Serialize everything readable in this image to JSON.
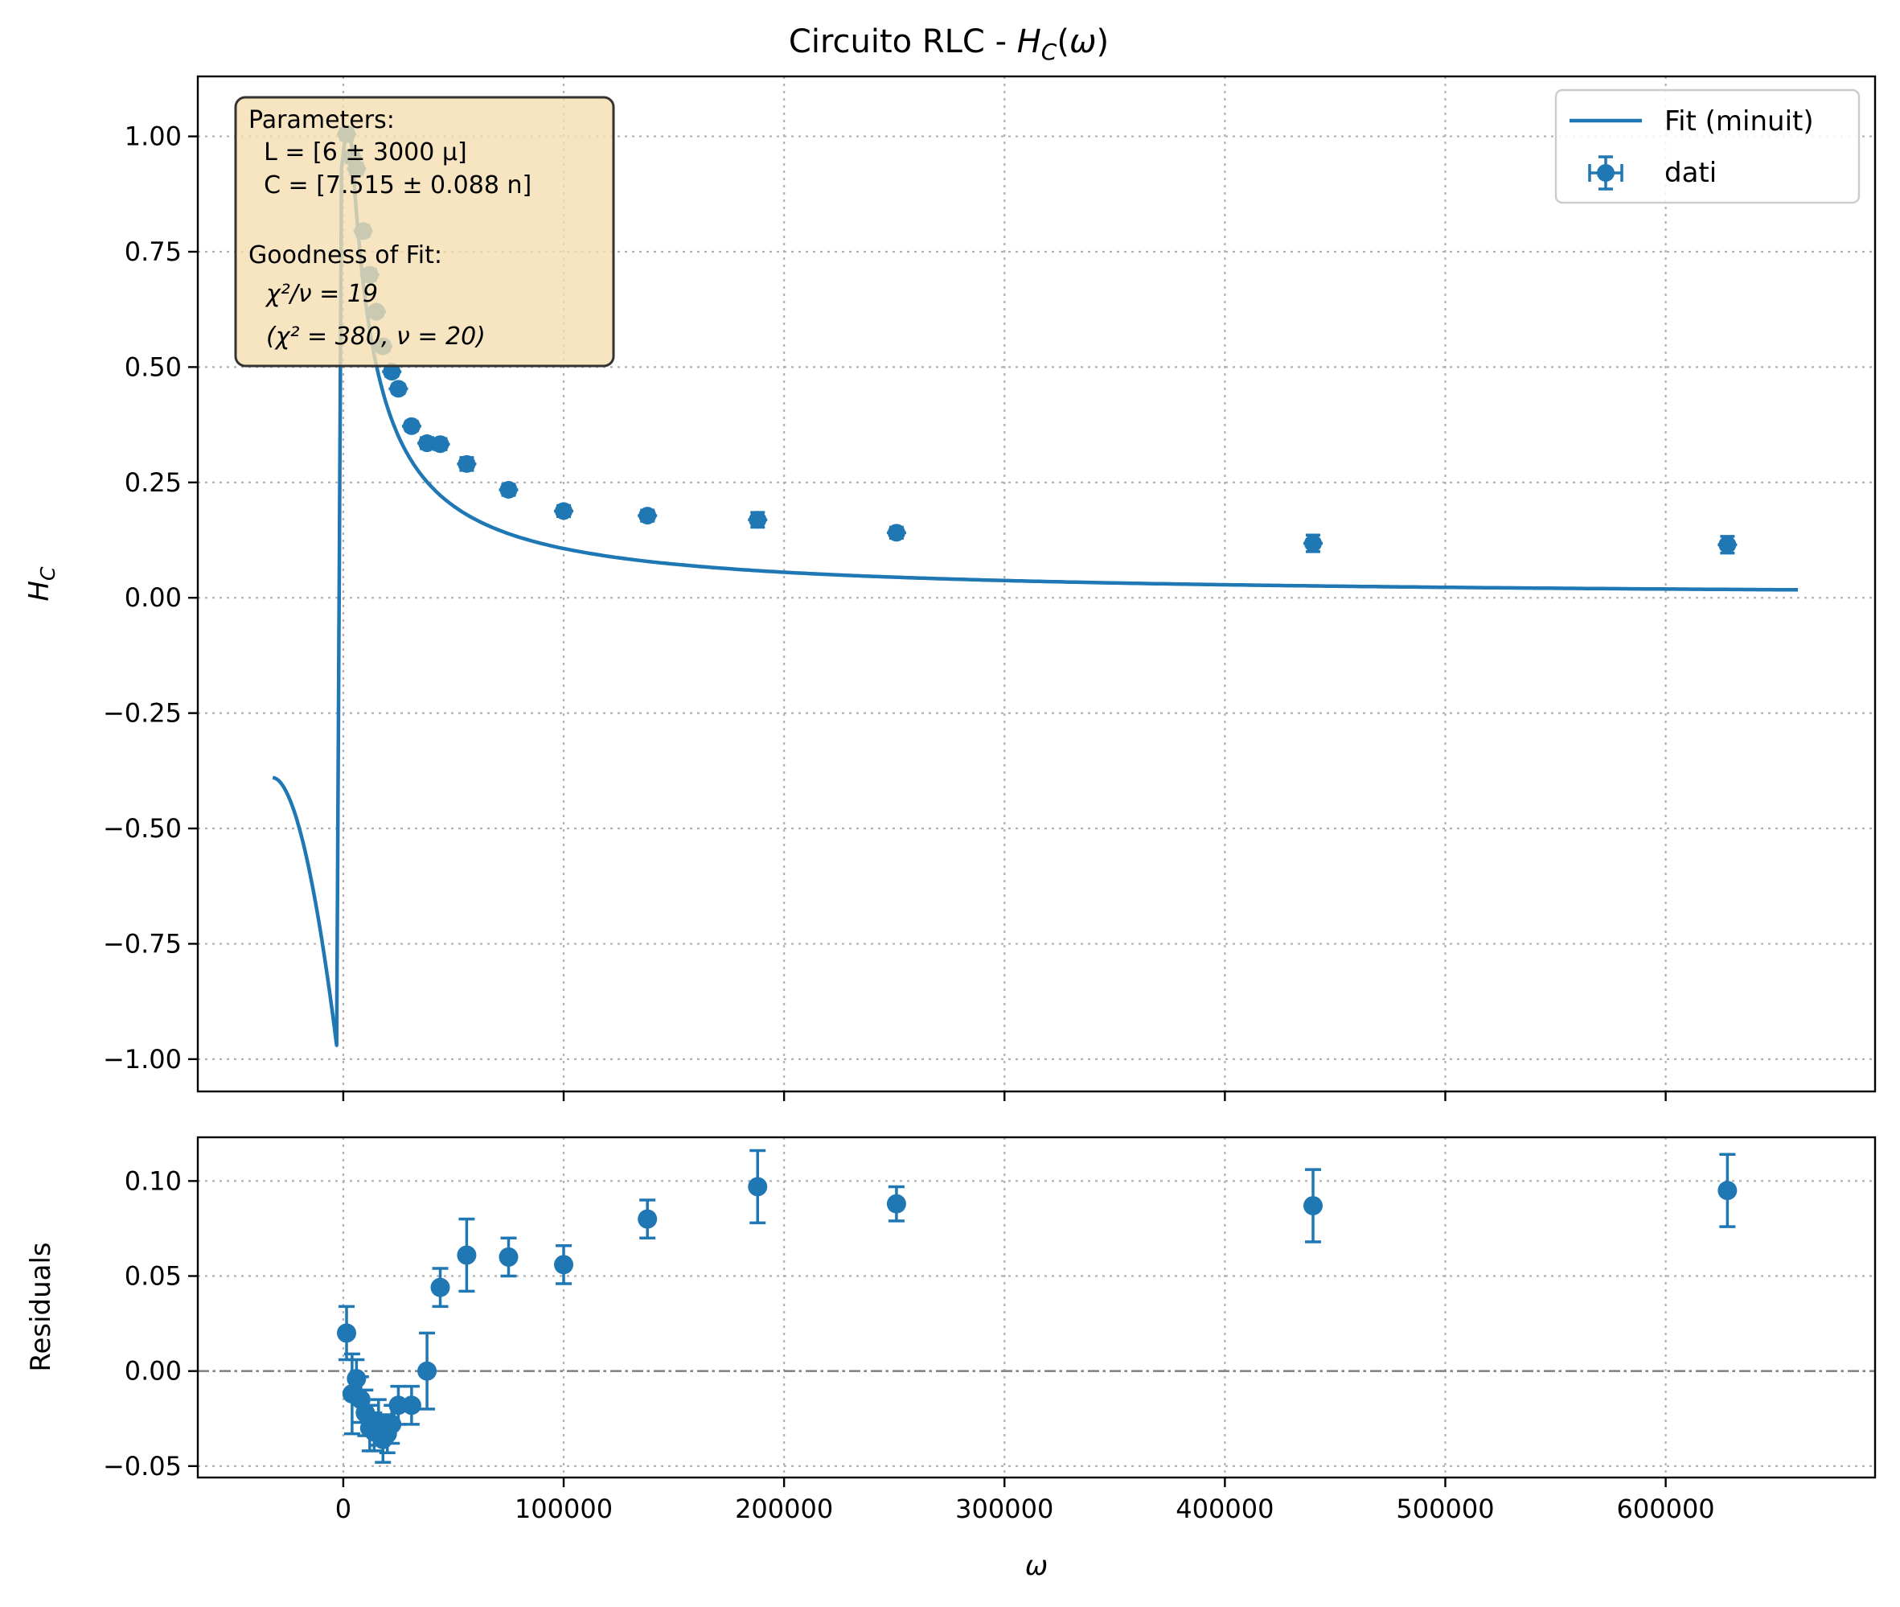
{
  "figure": {
    "title_prefix": "Circuito RLC - ",
    "title_math": "H_C(ω)"
  },
  "chart_data": [
    {
      "type": "scatter",
      "panel": "main",
      "ylabel": "H_C",
      "xlim": [
        -66000,
        695000
      ],
      "ylim": [
        -1.07,
        1.13
      ],
      "x_ticks": [
        0,
        100000,
        200000,
        300000,
        400000,
        500000,
        600000
      ],
      "y_ticks": [
        -1.0,
        -0.75,
        -0.5,
        -0.25,
        0.0,
        0.25,
        0.5,
        0.75,
        1.0
      ],
      "y_tick_labels": [
        "−1.00",
        "−0.75",
        "−0.50",
        "−0.25",
        "0.00",
        "0.25",
        "0.50",
        "0.75",
        "1.00"
      ],
      "grid": true,
      "legend_position": "top-right",
      "legend": {
        "fit_label": "Fit (minuit)",
        "data_label": "dati"
      },
      "fit_params": {
        "omega0": 4200,
        "omegaL": 12000,
        "omega_start": -32000,
        "omega_end": 660000
      },
      "series": [
        {
          "name": "dati",
          "x": [
            1500,
            4000,
            6000,
            9000,
            12000,
            15000,
            18000,
            22000,
            25000,
            31000,
            38000,
            44000,
            56000,
            75000,
            100000,
            138000,
            188000,
            251000,
            440000,
            628000
          ],
          "y": [
            1.005,
            0.955,
            0.93,
            0.795,
            0.7,
            0.62,
            0.545,
            0.49,
            0.453,
            0.372,
            0.335,
            0.333,
            0.29,
            0.234,
            0.188,
            0.178,
            0.169,
            0.141,
            0.118,
            0.115
          ],
          "yerr": [
            0.012,
            0.012,
            0.012,
            0.012,
            0.012,
            0.01,
            0.01,
            0.01,
            0.01,
            0.01,
            0.012,
            0.012,
            0.014,
            0.012,
            0.012,
            0.012,
            0.016,
            0.012,
            0.018,
            0.018
          ]
        }
      ],
      "textbox": {
        "lines": [
          "Parameters:",
          "  L = [6 ± 3000 µ]",
          "  C = [7.515 ± 0.088 n]",
          "",
          "Goodness of Fit:"
        ],
        "chi_nu": "χ²/ν = 19",
        "chi_total": "(χ² = 380, ν = 20)"
      }
    },
    {
      "type": "scatter",
      "panel": "residuals",
      "xlabel": "ω",
      "ylabel": "Residuals",
      "xlim": [
        -66000,
        695000
      ],
      "ylim": [
        -0.056,
        0.123
      ],
      "x_ticks": [
        0,
        100000,
        200000,
        300000,
        400000,
        500000,
        600000
      ],
      "x_tick_labels": [
        "0",
        "100000",
        "200000",
        "300000",
        "400000",
        "500000",
        "600000"
      ],
      "y_ticks": [
        -0.05,
        0.0,
        0.05,
        0.1
      ],
      "y_tick_labels": [
        "−0.05",
        "0.00",
        "0.05",
        "0.10"
      ],
      "grid": true,
      "zero_line": 0,
      "series": [
        {
          "x": [
            1500,
            4000,
            6000,
            8000,
            10000,
            12000,
            14000,
            16000,
            18000,
            20000,
            22000,
            25000,
            31000,
            38000,
            44000,
            56000,
            75000,
            100000,
            138000,
            188000,
            251000,
            440000,
            628000
          ],
          "y": [
            0.02,
            -0.012,
            -0.004,
            -0.015,
            -0.022,
            -0.03,
            -0.032,
            -0.027,
            -0.036,
            -0.033,
            -0.028,
            -0.018,
            -0.018,
            0.0,
            0.044,
            0.061,
            0.06,
            0.056,
            0.08,
            0.097,
            0.088,
            0.087,
            0.095
          ],
          "yerr": [
            0.014,
            0.021,
            0.01,
            0.012,
            0.012,
            0.012,
            0.01,
            0.012,
            0.012,
            0.01,
            0.01,
            0.01,
            0.01,
            0.02,
            0.01,
            0.019,
            0.01,
            0.01,
            0.01,
            0.019,
            0.009,
            0.019,
            0.019
          ]
        }
      ]
    }
  ]
}
